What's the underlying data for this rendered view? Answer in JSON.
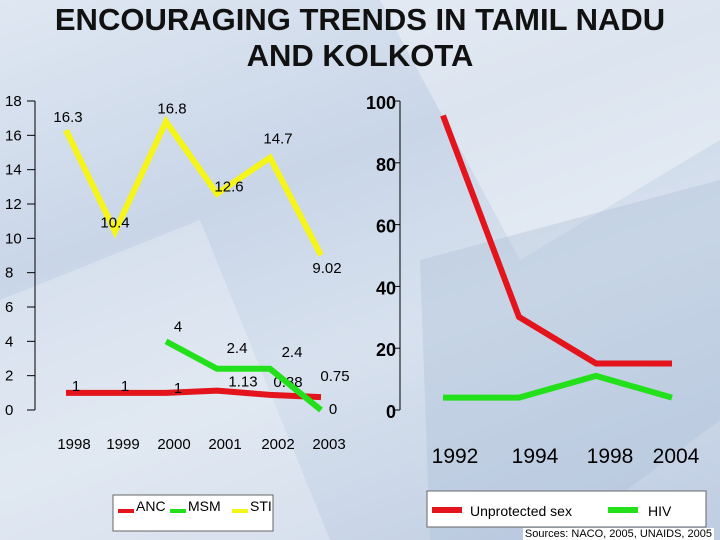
{
  "title_line1": "ENCOURAGING TRENDS IN TAMIL NADU",
  "title_line2": "AND KOLKOTA",
  "sources": "Sources: NACO, 2005, UNAIDS, 2005",
  "colors": {
    "anc": "#e3141b",
    "msm": "#22e01a",
    "sti": "#f5f51a"
  },
  "chart_data": [
    {
      "type": "line",
      "title": "",
      "categories": [
        "1998",
        "1999",
        "2000",
        "2001",
        "2002",
        "2003"
      ],
      "yticks_left": [
        "18",
        "16",
        "14",
        "12",
        "10",
        "8",
        "6",
        "4",
        "2",
        "0"
      ],
      "yticks_right": [
        "100",
        "80",
        "60",
        "40",
        "20",
        "0"
      ],
      "ylim_left": [
        0,
        18
      ],
      "ylim_right": [
        0,
        100
      ],
      "grid": false,
      "legend_position": "bottom",
      "series": [
        {
          "name": "ANC",
          "color": "#e3141b",
          "axis": "left",
          "values": [
            1,
            1,
            1,
            1.13,
            0.88,
            0.75
          ],
          "labels": [
            "1",
            "1",
            "1",
            "1.13",
            "0.88",
            "0.75"
          ]
        },
        {
          "name": "MSM",
          "color": "#22e01a",
          "axis": "left",
          "values": [
            null,
            null,
            4,
            2.4,
            2.4,
            0
          ],
          "labels": [
            "",
            "",
            "4",
            "2.4",
            "2.4",
            "0"
          ]
        },
        {
          "name": "STI",
          "color": "#f5f51a",
          "axis": "left",
          "values": [
            16.3,
            10.4,
            16.8,
            12.6,
            14.7,
            9.02
          ],
          "labels": [
            "16.3",
            "10.4",
            "16.8",
            "12.6",
            "14.7",
            "9.02"
          ]
        }
      ]
    },
    {
      "type": "line",
      "title": "",
      "categories": [
        "1992",
        "1994",
        "1998",
        "2004"
      ],
      "legend_position": "bottom",
      "series": [
        {
          "name": "Unprotected sex",
          "color": "#e3141b",
          "values": [
            95,
            30,
            15,
            15
          ]
        },
        {
          "name": "HIV",
          "color": "#22e01a",
          "values": [
            4,
            4,
            11,
            4
          ]
        }
      ]
    }
  ]
}
